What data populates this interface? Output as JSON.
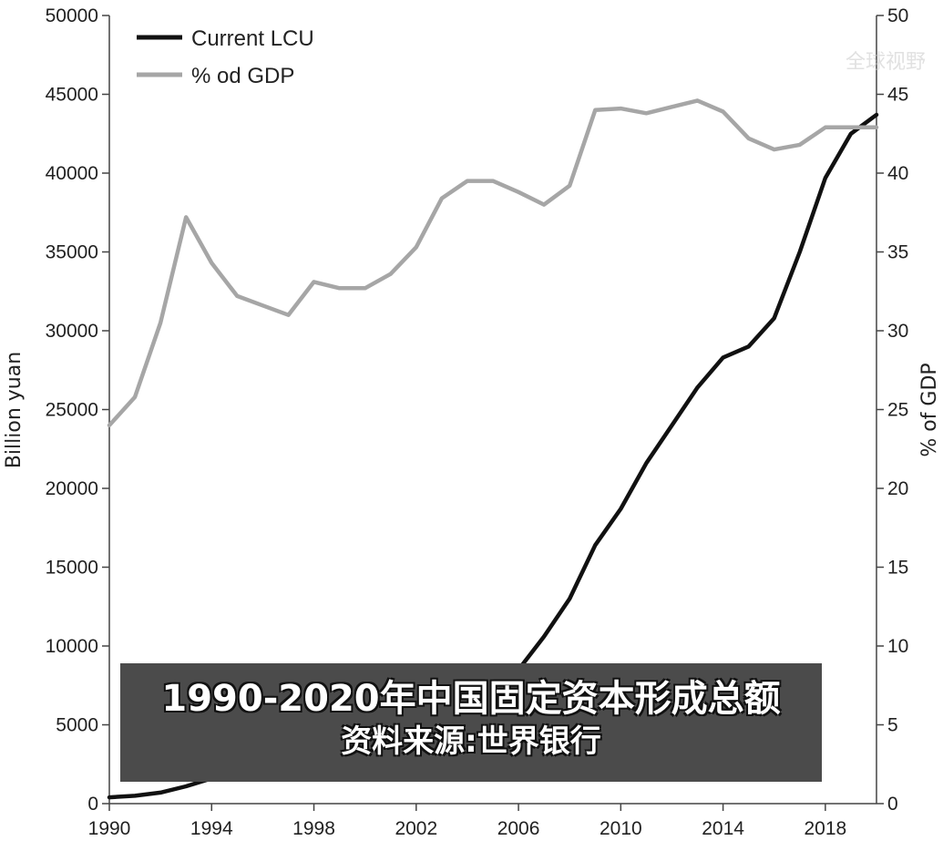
{
  "chart_data": {
    "type": "line",
    "title": "",
    "caption": {
      "line1": "1990-2020年中国固定资本形成总额",
      "line2": "资料来源:世界银行"
    },
    "watermark": "全球视野",
    "x_range": [
      1990,
      2020
    ],
    "x_ticks": [
      "1990",
      "1994",
      "1998",
      "2002",
      "2006",
      "2010",
      "2014",
      "2018"
    ],
    "y_left": {
      "label": "Billion yuan",
      "range": [
        0,
        50000
      ],
      "ticks": [
        "0",
        "5000",
        "10000",
        "15000",
        "20000",
        "25000",
        "30000",
        "35000",
        "40000",
        "45000",
        "50000"
      ]
    },
    "y_right": {
      "label": "% of GDP",
      "range": [
        0,
        50
      ],
      "ticks": [
        "0",
        "5",
        "10",
        "15",
        "20",
        "25",
        "30",
        "35",
        "40",
        "45",
        "50"
      ]
    },
    "legend": {
      "position": "top-left"
    },
    "series": [
      {
        "name": "Current LCU",
        "axis": "left",
        "color": "#111111",
        "x": [
          1990,
          1991,
          1992,
          1993,
          1994,
          1995,
          1996,
          1997,
          1998,
          1999,
          2000,
          2001,
          2002,
          2003,
          2004,
          2005,
          2006,
          2007,
          2008,
          2009,
          2010,
          2011,
          2012,
          2013,
          2014,
          2015,
          2016,
          2017,
          2018,
          2019,
          2020
        ],
        "values": [
          400,
          500,
          700,
          1100,
          1600,
          1900,
          2200,
          2200,
          2600,
          2900,
          3200,
          3700,
          4300,
          5500,
          6500,
          7500,
          8500,
          10600,
          13000,
          16400,
          18700,
          21600,
          24000,
          26400,
          28300,
          29000,
          30800,
          35000,
          39700,
          42500,
          43700
        ]
      },
      {
        "name": "% od GDP",
        "axis": "right",
        "color": "#a6a6a6",
        "x": [
          1990,
          1991,
          1992,
          1993,
          1994,
          1995,
          1996,
          1997,
          1998,
          1999,
          2000,
          2001,
          2002,
          2003,
          2004,
          2005,
          2006,
          2007,
          2008,
          2009,
          2010,
          2011,
          2012,
          2013,
          2014,
          2015,
          2016,
          2017,
          2018,
          2019,
          2020
        ],
        "values": [
          24.0,
          25.8,
          30.5,
          37.2,
          34.3,
          32.2,
          31.6,
          31.0,
          33.1,
          32.7,
          32.7,
          33.6,
          35.3,
          38.4,
          39.5,
          39.5,
          38.8,
          38.0,
          39.2,
          44.0,
          44.1,
          43.8,
          44.2,
          44.6,
          43.9,
          42.2,
          41.5,
          41.8,
          42.9,
          42.9,
          42.9
        ]
      }
    ]
  }
}
